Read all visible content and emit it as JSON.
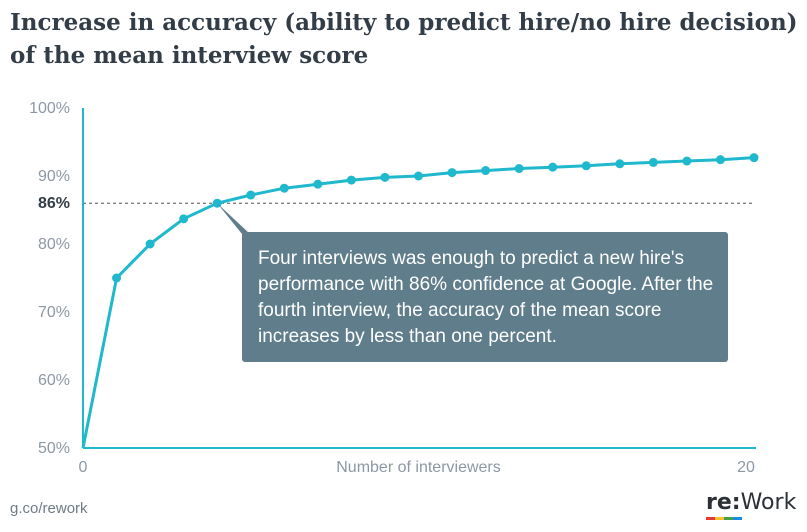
{
  "title": "Increase in accuracy (ability to predict hire/no hire decision) of the mean interview score",
  "source": "g.co/rework",
  "logo": {
    "re": "re",
    "colon": ":",
    "work": "Work"
  },
  "callout": "Four interviews was enough to predict a new hire's performance with 86% confidence at Google. After the fourth interview, the accuracy of the mean score increases by less than one percent.",
  "colors": {
    "line": "#1fb8cc",
    "callout_bg": "#607d8b",
    "axis": "#1fb8cc",
    "reference": "#555555"
  },
  "chart_data": {
    "type": "line",
    "title": "Increase in accuracy (ability to predict hire/no hire decision) of the mean interview score",
    "xlabel": "Number of interviewers",
    "ylabel": "",
    "x": [
      0,
      1,
      2,
      3,
      4,
      5,
      6,
      7,
      8,
      9,
      10,
      11,
      12,
      13,
      14,
      15,
      16,
      17,
      18,
      19,
      20
    ],
    "y": [
      50,
      75,
      80,
      83.7,
      86,
      87.2,
      88.2,
      88.8,
      89.4,
      89.8,
      90.0,
      90.5,
      90.8,
      91.1,
      91.3,
      91.5,
      91.8,
      92.0,
      92.2,
      92.4,
      92.7
    ],
    "xlim": [
      0,
      20
    ],
    "ylim": [
      50,
      100
    ],
    "x_ticks": [
      "0",
      "20"
    ],
    "y_ticks": [
      {
        "value": 100,
        "label": "100%"
      },
      {
        "value": 90,
        "label": "90%"
      },
      {
        "value": 80,
        "label": "80%"
      },
      {
        "value": 70,
        "label": "70%"
      },
      {
        "value": 60,
        "label": "60%"
      },
      {
        "value": 50,
        "label": "50%"
      }
    ],
    "reference_line": {
      "value": 86,
      "label": "86%"
    },
    "grid": false,
    "legend": "none"
  }
}
